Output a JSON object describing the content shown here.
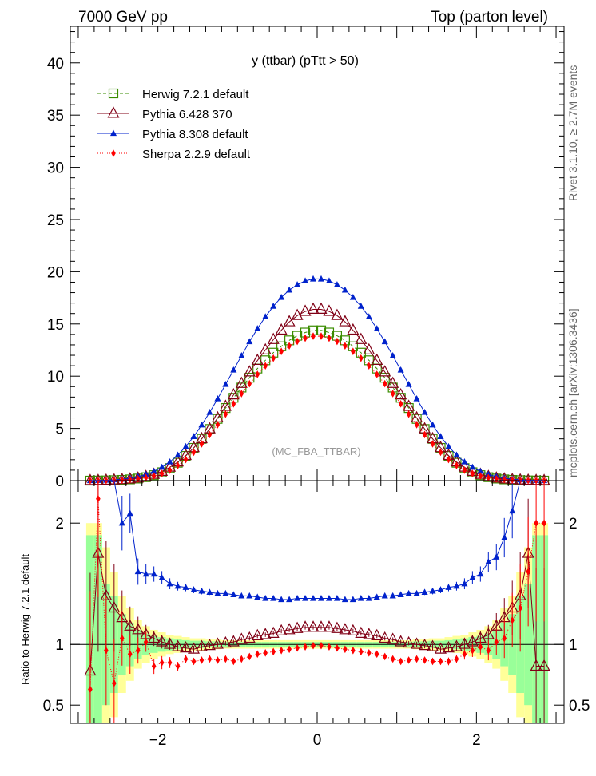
{
  "header": {
    "left": "7000 GeV pp",
    "right": "Top (parton level)"
  },
  "side_labels": {
    "rivet": "Rivet 3.1.10, ≥ 2.7M events",
    "mcplots": "mcplots.cern.ch [arXiv:1306.3436]"
  },
  "plot_title": "y (ttbar) (pTtt > 50)",
  "watermark": "(MC_FBA_TTBAR)",
  "ratio_ylabel": "Ratio to Herwig 7.2.1 default",
  "colors": {
    "herwig": "#3a8c00",
    "pythia6": "#800016",
    "pythia8": "#0022cc",
    "sherpa": "#ff0000",
    "band_green": "#99ff99",
    "band_yellow": "#ffff99"
  },
  "chart_data": {
    "type": "line",
    "x_range": [
      -3.1,
      3.1
    ],
    "main_ylim": [
      0,
      43.5
    ],
    "ratio_ylim": [
      0.35,
      2.35
    ],
    "main_yticks": [
      "0",
      "5",
      "10",
      "15",
      "20",
      "25",
      "30",
      "35",
      "40"
    ],
    "main_ytick_values": [
      0,
      5,
      10,
      15,
      20,
      25,
      30,
      35,
      40
    ],
    "ratio_yticks": [
      "0.5",
      "1",
      "2"
    ],
    "ratio_ytick_values": [
      0.5,
      1,
      2
    ],
    "xticks": [
      "−2",
      "0",
      "2"
    ],
    "xtick_values": [
      -2,
      0,
      2
    ],
    "x": [
      -2.85,
      -2.75,
      -2.65,
      -2.55,
      -2.45,
      -2.35,
      -2.25,
      -2.15,
      -2.05,
      -1.95,
      -1.85,
      -1.75,
      -1.65,
      -1.55,
      -1.45,
      -1.35,
      -1.25,
      -1.15,
      -1.05,
      -0.95,
      -0.85,
      -0.75,
      -0.65,
      -0.55,
      -0.45,
      -0.35,
      -0.25,
      -0.15,
      -0.05,
      0.05,
      0.15,
      0.25,
      0.35,
      0.45,
      0.55,
      0.65,
      0.75,
      0.85,
      0.95,
      1.05,
      1.15,
      1.25,
      1.35,
      1.45,
      1.55,
      1.65,
      1.75,
      1.85,
      1.95,
      2.05,
      2.15,
      2.25,
      2.35,
      2.45,
      2.55,
      2.65,
      2.75,
      2.85
    ],
    "series": [
      {
        "name": "Herwig 7.2.1 default",
        "key": "herwig",
        "marker": "open-square",
        "dash": "4,3",
        "main": [
          0.0,
          0.01,
          0.02,
          0.04,
          0.07,
          0.12,
          0.2,
          0.33,
          0.52,
          0.8,
          1.2,
          1.71,
          2.36,
          3.13,
          4.0,
          4.94,
          5.91,
          6.95,
          7.93,
          8.91,
          9.85,
          10.73,
          11.52,
          12.25,
          12.86,
          13.43,
          13.87,
          14.18,
          14.39,
          14.39,
          14.18,
          13.87,
          13.43,
          12.86,
          12.25,
          11.52,
          10.73,
          9.85,
          8.91,
          7.93,
          6.95,
          5.91,
          4.94,
          4.0,
          3.13,
          2.36,
          1.71,
          1.2,
          0.8,
          0.52,
          0.33,
          0.2,
          0.12,
          0.07,
          0.04,
          0.02,
          0.01,
          0.0
        ],
        "ratio": []
      },
      {
        "name": "Pythia 6.428 370",
        "key": "pythia6",
        "marker": "open-triangle",
        "dash": "",
        "main": [
          0.0,
          0.01,
          0.03,
          0.06,
          0.09,
          0.15,
          0.24,
          0.38,
          0.59,
          0.88,
          1.28,
          1.78,
          2.4,
          3.15,
          4.0,
          4.95,
          6.0,
          7.1,
          8.2,
          9.3,
          10.4,
          11.5,
          12.5,
          13.5,
          14.4,
          15.2,
          15.8,
          16.2,
          16.4,
          16.4,
          16.2,
          15.8,
          15.2,
          14.4,
          13.5,
          12.5,
          11.5,
          10.4,
          9.3,
          8.2,
          7.1,
          6.0,
          4.95,
          4.0,
          3.15,
          2.4,
          1.78,
          1.28,
          0.88,
          0.59,
          0.38,
          0.24,
          0.15,
          0.09,
          0.06,
          0.03,
          0.01,
          0.0
        ],
        "ratio": [
          0.78,
          1.75,
          1.4,
          1.3,
          1.22,
          1.15,
          1.12,
          1.08,
          1.05,
          1.02,
          1.0,
          0.98,
          0.97,
          0.96,
          0.98,
          0.99,
          1.0,
          1.01,
          1.02,
          1.04,
          1.05,
          1.07,
          1.08,
          1.09,
          1.11,
          1.12,
          1.13,
          1.14,
          1.14,
          1.14,
          1.14,
          1.13,
          1.12,
          1.11,
          1.09,
          1.08,
          1.07,
          1.05,
          1.04,
          1.02,
          1.01,
          1.0,
          0.99,
          0.98,
          0.96,
          0.97,
          0.98,
          1.0,
          1.02,
          1.05,
          1.08,
          1.15,
          1.22,
          1.3,
          1.4,
          1.75,
          0.82,
          0.82
        ]
      },
      {
        "name": "Pythia 8.308 default",
        "key": "pythia8",
        "marker": "filled-triangle",
        "dash": "",
        "main": [
          0.0,
          0.02,
          0.04,
          0.08,
          0.14,
          0.24,
          0.38,
          0.59,
          0.89,
          1.28,
          1.8,
          2.45,
          3.26,
          4.22,
          5.33,
          6.54,
          7.84,
          9.21,
          10.59,
          11.96,
          13.3,
          14.55,
          15.69,
          16.7,
          17.55,
          18.24,
          18.76,
          19.12,
          19.31,
          19.31,
          19.12,
          18.76,
          18.24,
          17.55,
          16.7,
          15.69,
          14.55,
          13.3,
          11.96,
          10.59,
          9.21,
          7.84,
          6.54,
          5.33,
          4.22,
          3.26,
          2.45,
          1.8,
          1.28,
          0.89,
          0.59,
          0.38,
          0.24,
          0.14,
          0.08,
          0.04,
          0.02,
          0.0
        ],
        "ratio": [
          3.5,
          3.2,
          2.8,
          2.5,
          2.0,
          2.08,
          1.6,
          1.58,
          1.58,
          1.55,
          1.5,
          1.48,
          1.47,
          1.45,
          1.44,
          1.43,
          1.42,
          1.42,
          1.41,
          1.4,
          1.4,
          1.39,
          1.38,
          1.38,
          1.37,
          1.37,
          1.38,
          1.38,
          1.38,
          1.38,
          1.38,
          1.38,
          1.37,
          1.37,
          1.38,
          1.38,
          1.39,
          1.4,
          1.4,
          1.41,
          1.42,
          1.42,
          1.43,
          1.44,
          1.45,
          1.47,
          1.48,
          1.5,
          1.55,
          1.58,
          1.68,
          1.72,
          1.88,
          2.1,
          2.4,
          2.8,
          3.2,
          3.5
        ]
      },
      {
        "name": "Sherpa 2.2.9 default",
        "key": "sherpa",
        "marker": "filled-diamond",
        "dash": "1,2",
        "main": [
          0.0,
          0.01,
          0.02,
          0.03,
          0.06,
          0.1,
          0.17,
          0.28,
          0.45,
          0.68,
          1.0,
          1.45,
          2.02,
          2.72,
          3.52,
          4.41,
          5.36,
          6.36,
          7.35,
          8.33,
          9.28,
          10.17,
          10.99,
          11.72,
          12.37,
          12.9,
          13.33,
          13.64,
          13.83,
          13.83,
          13.64,
          13.33,
          12.9,
          12.37,
          11.72,
          10.99,
          10.17,
          9.28,
          8.33,
          7.35,
          6.36,
          5.36,
          4.41,
          3.52,
          2.72,
          2.02,
          1.45,
          1.0,
          0.68,
          0.45,
          0.28,
          0.17,
          0.1,
          0.06,
          0.03,
          0.02,
          0.01,
          0.0
        ],
        "ratio": [
          0.63,
          2.2,
          0.95,
          0.68,
          1.05,
          0.92,
          0.95,
          1.02,
          0.82,
          0.85,
          0.85,
          0.82,
          0.88,
          0.86,
          0.87,
          0.88,
          0.87,
          0.88,
          0.86,
          0.88,
          0.9,
          0.92,
          0.93,
          0.94,
          0.95,
          0.96,
          0.97,
          0.98,
          0.99,
          0.99,
          0.98,
          0.97,
          0.96,
          0.95,
          0.94,
          0.93,
          0.92,
          0.9,
          0.88,
          0.86,
          0.87,
          0.88,
          0.87,
          0.86,
          0.86,
          0.86,
          0.88,
          0.92,
          0.95,
          0.98,
          0.95,
          1.02,
          1.05,
          1.2,
          1.3,
          1.6,
          2.0,
          2.0
        ]
      }
    ],
    "band_half_green": [
      0.9,
      0.9,
      0.5,
      0.4,
      0.25,
      0.18,
      0.12,
      0.09,
      0.07,
      0.06,
      0.05,
      0.04,
      0.035,
      0.03,
      0.03,
      0.025,
      0.025,
      0.02,
      0.02,
      0.02,
      0.02,
      0.02,
      0.02,
      0.02,
      0.02,
      0.02,
      0.02,
      0.02,
      0.02,
      0.02,
      0.02,
      0.02,
      0.02,
      0.02,
      0.02,
      0.02,
      0.02,
      0.02,
      0.02,
      0.02,
      0.02,
      0.025,
      0.025,
      0.03,
      0.03,
      0.035,
      0.04,
      0.05,
      0.06,
      0.07,
      0.09,
      0.12,
      0.18,
      0.25,
      0.4,
      0.5,
      0.9,
      0.9
    ],
    "band_half_yellow": [
      1.0,
      1.0,
      0.8,
      0.6,
      0.4,
      0.3,
      0.2,
      0.15,
      0.12,
      0.1,
      0.08,
      0.07,
      0.06,
      0.05,
      0.05,
      0.04,
      0.04,
      0.035,
      0.035,
      0.035,
      0.035,
      0.035,
      0.035,
      0.035,
      0.035,
      0.035,
      0.035,
      0.035,
      0.035,
      0.035,
      0.035,
      0.035,
      0.035,
      0.035,
      0.035,
      0.035,
      0.035,
      0.035,
      0.035,
      0.035,
      0.035,
      0.04,
      0.04,
      0.05,
      0.05,
      0.06,
      0.07,
      0.08,
      0.1,
      0.12,
      0.15,
      0.2,
      0.3,
      0.4,
      0.6,
      0.8,
      1.0,
      1.0
    ]
  }
}
